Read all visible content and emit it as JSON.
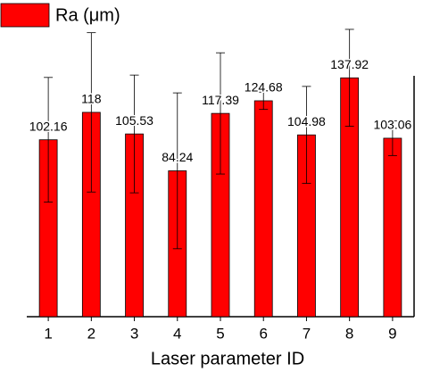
{
  "chart_data": {
    "type": "bar",
    "x_label": "Laser parameter ID",
    "categories": [
      "1",
      "2",
      "3",
      "4",
      "5",
      "6",
      "7",
      "8",
      "9"
    ],
    "series": [
      {
        "name": "Ra (μm)",
        "color": "#ff0000",
        "values": [
          102.16,
          118,
          105.53,
          84.24,
          117.39,
          124.68,
          104.98,
          137.92,
          103.06
        ],
        "errors": [
          36,
          46,
          34,
          45,
          35,
          5,
          28,
          28,
          10
        ]
      }
    ],
    "ylim": [
      0,
      170
    ],
    "legend": "top-left"
  }
}
